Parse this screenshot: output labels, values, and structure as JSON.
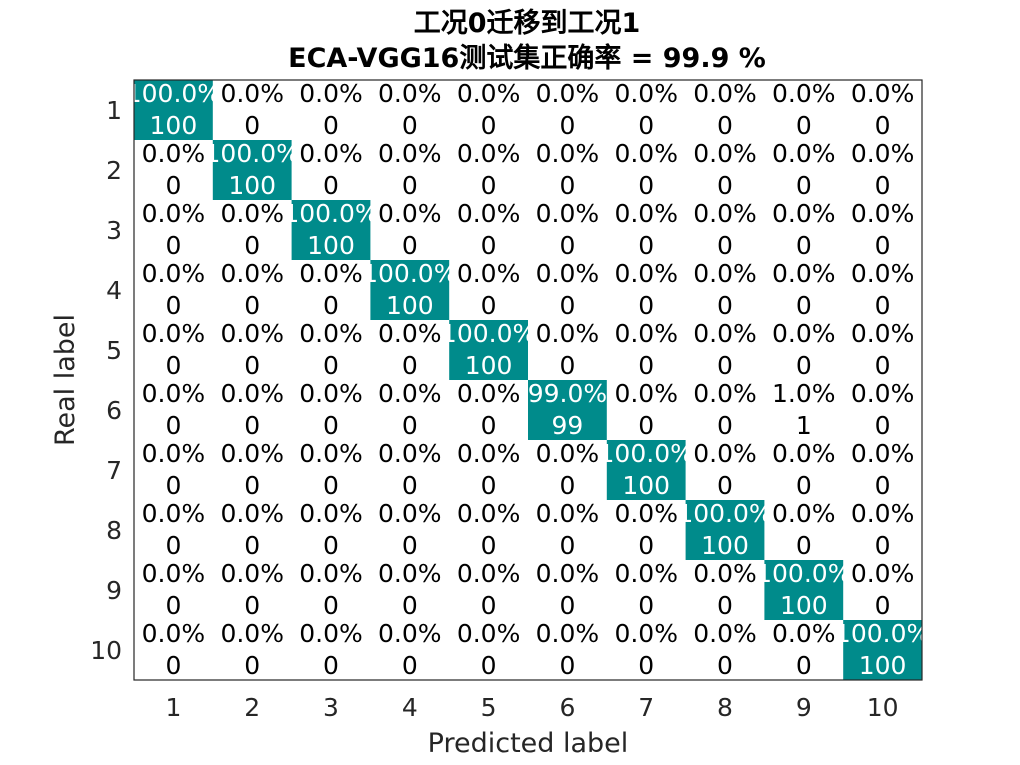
{
  "chart_data": {
    "type": "heatmap",
    "title_line1": "工况0迁移到工况1",
    "title_line2": "ECA-VGG16测试集正确率 = 99.9 %",
    "xlabel": "Predicted label",
    "ylabel": "Real label",
    "x_ticks": [
      "1",
      "2",
      "3",
      "4",
      "5",
      "6",
      "7",
      "8",
      "9",
      "10"
    ],
    "y_ticks": [
      "1",
      "2",
      "3",
      "4",
      "5",
      "6",
      "7",
      "8",
      "9",
      "10"
    ],
    "highlight_color": "#008B8B",
    "counts": [
      [
        100,
        0,
        0,
        0,
        0,
        0,
        0,
        0,
        0,
        0
      ],
      [
        0,
        100,
        0,
        0,
        0,
        0,
        0,
        0,
        0,
        0
      ],
      [
        0,
        0,
        100,
        0,
        0,
        0,
        0,
        0,
        0,
        0
      ],
      [
        0,
        0,
        0,
        100,
        0,
        0,
        0,
        0,
        0,
        0
      ],
      [
        0,
        0,
        0,
        0,
        100,
        0,
        0,
        0,
        0,
        0
      ],
      [
        0,
        0,
        0,
        0,
        0,
        99,
        0,
        0,
        1,
        0
      ],
      [
        0,
        0,
        0,
        0,
        0,
        0,
        100,
        0,
        0,
        0
      ],
      [
        0,
        0,
        0,
        0,
        0,
        0,
        0,
        100,
        0,
        0
      ],
      [
        0,
        0,
        0,
        0,
        0,
        0,
        0,
        0,
        100,
        0
      ],
      [
        0,
        0,
        0,
        0,
        0,
        0,
        0,
        0,
        0,
        100
      ]
    ],
    "percent_labels": [
      [
        "100.0%",
        "0.0%",
        "0.0%",
        "0.0%",
        "0.0%",
        "0.0%",
        "0.0%",
        "0.0%",
        "0.0%",
        "0.0%"
      ],
      [
        "0.0%",
        "100.0%",
        "0.0%",
        "0.0%",
        "0.0%",
        "0.0%",
        "0.0%",
        "0.0%",
        "0.0%",
        "0.0%"
      ],
      [
        "0.0%",
        "0.0%",
        "100.0%",
        "0.0%",
        "0.0%",
        "0.0%",
        "0.0%",
        "0.0%",
        "0.0%",
        "0.0%"
      ],
      [
        "0.0%",
        "0.0%",
        "0.0%",
        "100.0%",
        "0.0%",
        "0.0%",
        "0.0%",
        "0.0%",
        "0.0%",
        "0.0%"
      ],
      [
        "0.0%",
        "0.0%",
        "0.0%",
        "0.0%",
        "100.0%",
        "0.0%",
        "0.0%",
        "0.0%",
        "0.0%",
        "0.0%"
      ],
      [
        "0.0%",
        "0.0%",
        "0.0%",
        "0.0%",
        "0.0%",
        "99.0%",
        "0.0%",
        "0.0%",
        "1.0%",
        "0.0%"
      ],
      [
        "0.0%",
        "0.0%",
        "0.0%",
        "0.0%",
        "0.0%",
        "0.0%",
        "100.0%",
        "0.0%",
        "0.0%",
        "0.0%"
      ],
      [
        "0.0%",
        "0.0%",
        "0.0%",
        "0.0%",
        "0.0%",
        "0.0%",
        "0.0%",
        "100.0%",
        "0.0%",
        "0.0%"
      ],
      [
        "0.0%",
        "0.0%",
        "0.0%",
        "0.0%",
        "0.0%",
        "0.0%",
        "0.0%",
        "0.0%",
        "100.0%",
        "0.0%"
      ],
      [
        "0.0%",
        "0.0%",
        "0.0%",
        "0.0%",
        "0.0%",
        "0.0%",
        "0.0%",
        "0.0%",
        "0.0%",
        "100.0%"
      ]
    ]
  }
}
